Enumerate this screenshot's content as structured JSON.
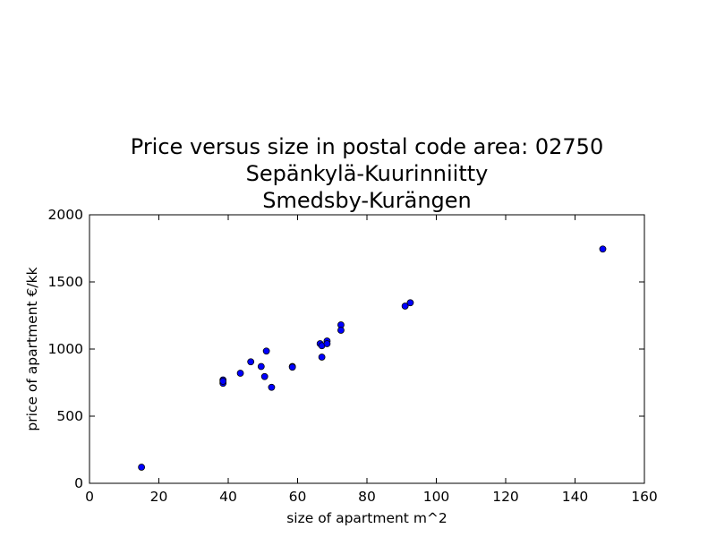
{
  "chart_data": {
    "type": "scatter",
    "title": [
      "Price versus size in postal code area: 02750",
      "Sepänkylä-Kuurinniitty",
      "Smedsby-Kurängen"
    ],
    "xlabel": "size of apartment m^2",
    "ylabel": "price of apartment €/kk",
    "xlim": [
      0,
      160
    ],
    "ylim": [
      0,
      2000
    ],
    "xticks": [
      "0",
      "20",
      "40",
      "60",
      "80",
      "100",
      "120",
      "140",
      "160"
    ],
    "yticks": [
      "0",
      "500",
      "1000",
      "1500",
      "2000"
    ],
    "grid": false,
    "marker_color": "#0000ff",
    "x": [
      15,
      38.5,
      38.5,
      38.5,
      43.5,
      46.5,
      49.5,
      50.5,
      51,
      52.5,
      58.5,
      58.5,
      66.5,
      67,
      67,
      68.5,
      68.5,
      72.5,
      72.5,
      91,
      92.5,
      148
    ],
    "y": [
      120,
      770,
      745,
      760,
      820,
      905,
      870,
      795,
      985,
      715,
      870,
      865,
      1040,
      1025,
      940,
      1060,
      1040,
      1180,
      1140,
      1320,
      1345,
      1745
    ]
  }
}
